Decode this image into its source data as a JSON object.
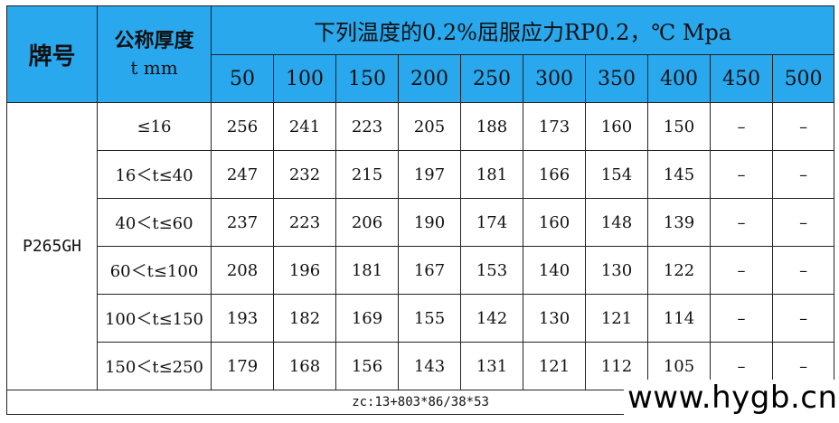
{
  "table": {
    "header_grade": "牌号",
    "header_thickness_line1": "公称厚度",
    "header_thickness_line2": "t mm",
    "header_title": "下列温度的0.2%屈服应力RP0.2，℃ Mpa",
    "temperatures": [
      "50",
      "100",
      "150",
      "200",
      "250",
      "300",
      "350",
      "400",
      "450",
      "500"
    ],
    "grade": "P265GH",
    "rows": [
      {
        "range": "≤16",
        "values": [
          "256",
          "241",
          "223",
          "205",
          "188",
          "173",
          "160",
          "150",
          "–",
          "–"
        ]
      },
      {
        "range": "16＜t≤40",
        "values": [
          "247",
          "232",
          "215",
          "197",
          "181",
          "166",
          "154",
          "145",
          "–",
          "–"
        ]
      },
      {
        "range": "40＜t≤60",
        "values": [
          "237",
          "223",
          "206",
          "190",
          "174",
          "160",
          "148",
          "139",
          "–",
          "–"
        ]
      },
      {
        "range": "60＜t≤100",
        "values": [
          "208",
          "196",
          "181",
          "167",
          "153",
          "140",
          "130",
          "122",
          "–",
          "–"
        ]
      },
      {
        "range": "100＜t≤150",
        "values": [
          "193",
          "182",
          "169",
          "155",
          "142",
          "130",
          "121",
          "114",
          "–",
          "–"
        ]
      },
      {
        "range": "150＜t≤250",
        "values": [
          "179",
          "168",
          "156",
          "143",
          "131",
          "121",
          "112",
          "105",
          "–",
          "–"
        ]
      }
    ],
    "footer": "zc:13+803*86/38*53"
  },
  "watermark": "www.hygb.cn",
  "colors": {
    "header_bg": "#29a8ee",
    "border": "#222222"
  }
}
